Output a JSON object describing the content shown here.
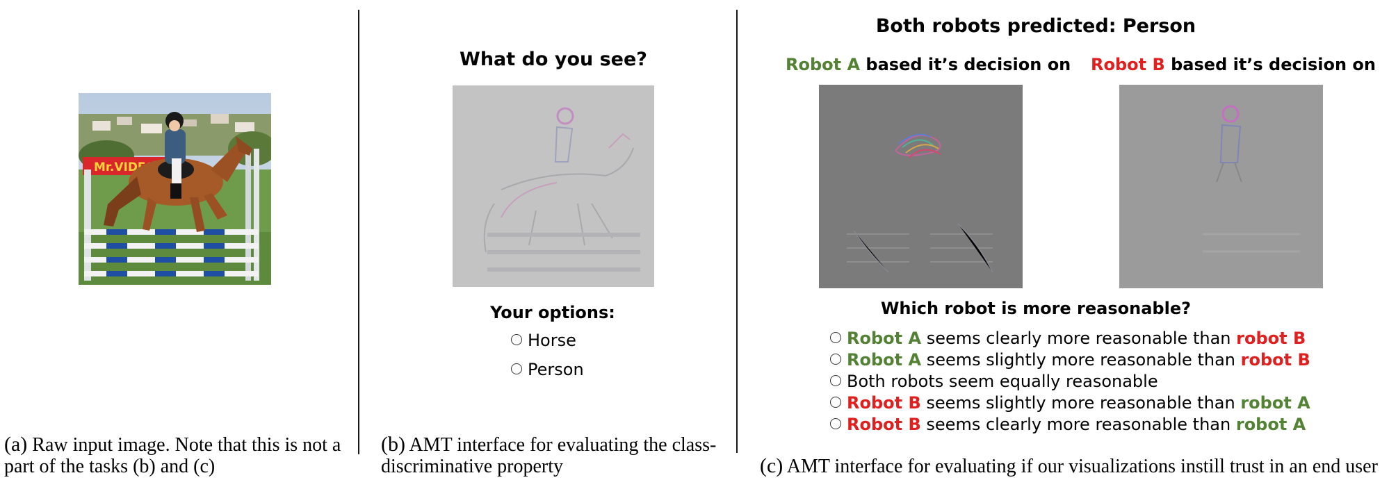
{
  "panel_a": {
    "image_alt": "Photo of a child riding a brown horse over blue and white show jumping poles",
    "sign_text": "Mr.VIDEO",
    "caption_label": "(a)",
    "caption_line1": "Raw input image. Note that this is not a",
    "caption_line2": "part of the tasks (b) and (c)"
  },
  "panel_b": {
    "question": "What do you see?",
    "options_heading": "Your options:",
    "options": [
      "Horse",
      "Person"
    ],
    "caption_label": "(b)",
    "caption_line1": "AMT interface for evaluating the class-",
    "caption_line2": "discriminative property"
  },
  "panel_c": {
    "title": "Both robots predicted: Person",
    "robot_a": "Robot A",
    "robot_b": "Robot B",
    "based_on": "based it’s decision on",
    "question": "Which robot is more reasonable?",
    "options": [
      {
        "lead": "Robot A",
        "lead_color": "green",
        "mid": "seems clearly more reasonable than",
        "tail": "robot B",
        "tail_color": "red"
      },
      {
        "lead": "Robot A",
        "lead_color": "green",
        "mid": "seems slightly more reasonable than",
        "tail": "robot B",
        "tail_color": "red"
      },
      {
        "lead": "",
        "lead_color": "",
        "mid": "Both robots seem equally reasonable",
        "tail": "",
        "tail_color": ""
      },
      {
        "lead": "Robot B",
        "lead_color": "red",
        "mid": "seems slightly more reasonable than",
        "tail": "robot A",
        "tail_color": "green"
      },
      {
        "lead": "Robot B",
        "lead_color": "red",
        "mid": "seems clearly more reasonable than",
        "tail": "robot A",
        "tail_color": "green"
      }
    ],
    "caption_label": "(c)",
    "caption_line1": "AMT interface for evaluating if our visualizations instill trust in an end user"
  },
  "colors": {
    "green": "#538234",
    "red": "#e01f1f"
  }
}
